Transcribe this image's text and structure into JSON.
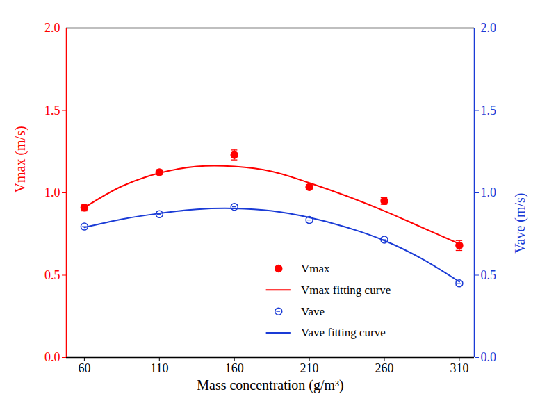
{
  "chart_data": {
    "type": "scatter",
    "x_label": "Mass concentration (g/m³)",
    "y_label": "Vmax (m/s)",
    "y2_label": "Vave (m/s)",
    "xlim": [
      48,
      320
    ],
    "xticks": [
      60,
      110,
      160,
      210,
      260,
      310
    ],
    "ylim": [
      0,
      2
    ],
    "yticks": [
      {
        "value": 0,
        "label": "0.0"
      },
      0.5,
      {
        "value": 1,
        "label": "1.0"
      },
      1.5,
      {
        "value": 2,
        "label": "2.0"
      }
    ],
    "y2lim": [
      0,
      2
    ],
    "y2ticks": [
      {
        "value": 0,
        "label": "0.0"
      },
      0.5,
      {
        "value": 1,
        "label": "1.0"
      },
      1.5,
      {
        "value": 2,
        "label": "2.0"
      }
    ],
    "grid": false,
    "legend": "lower center",
    "series": [
      {
        "name": "Vmax",
        "type": "scatter",
        "marker": "circle",
        "color": "#ff0000",
        "x": [
          60,
          110,
          160,
          210,
          260,
          310
        ],
        "values": [
          0.91,
          1.125,
          1.23,
          1.035,
          0.95,
          0.68
        ],
        "errors": [
          0.02,
          0.015,
          0.03,
          0.015,
          0.02,
          0.03
        ]
      },
      {
        "name": "Vmax fitting curve",
        "type": "line",
        "line_style": "solid",
        "color": "#ff0000",
        "x": [
          60,
          85,
          110,
          135,
          160,
          185,
          210,
          235,
          260,
          285,
          310
        ],
        "values": [
          0.91,
          1.04,
          1.12,
          1.16,
          1.16,
          1.13,
          1.06,
          0.98,
          0.89,
          0.79,
          0.69
        ]
      },
      {
        "name": "Vave",
        "type": "scatter",
        "marker": "circle_open",
        "color": "#1a3bd6",
        "axis": "y2",
        "x": [
          60,
          110,
          160,
          210,
          260,
          310
        ],
        "values": [
          0.795,
          0.87,
          0.915,
          0.835,
          0.715,
          0.45
        ],
        "errors": [
          0.012,
          0.01,
          0.012,
          0.015,
          0.012,
          0.012
        ]
      },
      {
        "name": "Vave fitting curve",
        "type": "line",
        "line_style": "solid",
        "color": "#1a3bd6",
        "axis": "y2",
        "x": [
          60,
          85,
          110,
          135,
          160,
          185,
          210,
          235,
          260,
          285,
          310
        ],
        "values": [
          0.79,
          0.84,
          0.875,
          0.9,
          0.905,
          0.89,
          0.85,
          0.79,
          0.71,
          0.6,
          0.46
        ]
      }
    ]
  }
}
